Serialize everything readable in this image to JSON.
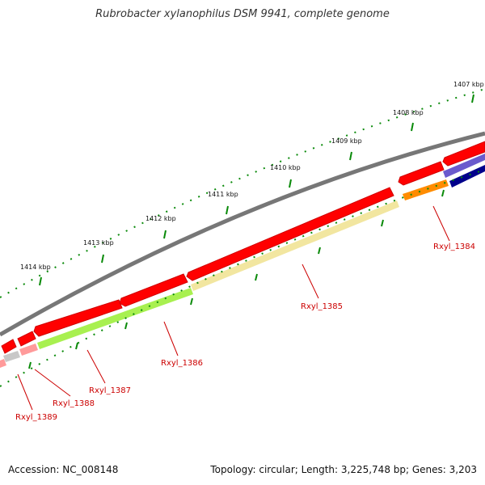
{
  "title": "Rubrobacter xylanophilus DSM 9941, complete genome",
  "footer": {
    "accession_label": "Accession:",
    "accession": "NC_008148",
    "info": "Topology: circular; Length: 3,225,748 bp; Genes: 3,203"
  },
  "kbp_labels": [
    "1407 kbp",
    "1408 kbp",
    "1409 kbp",
    "1410 kbp",
    "1411 kbp",
    "1412 kbp",
    "1413 kbp",
    "1414 kbp"
  ],
  "gene_labels": [
    "Rxyl_1384",
    "Rxyl_1385",
    "Rxyl_1386",
    "Rxyl_1387",
    "Rxyl_1388",
    "Rxyl_1389"
  ],
  "colors": {
    "cds": "#ff0000",
    "backbone": "#808080",
    "gene_1384": "#ff8c00",
    "gene_1385": "#f2e6a0",
    "gene_1386": "#a8f050",
    "gene_1387": "#a8f050",
    "gene_1388": "#ff9a9a",
    "gene_1389": "#c8c8c8",
    "tick": "#0a8a0a",
    "label": "#cc0000"
  }
}
